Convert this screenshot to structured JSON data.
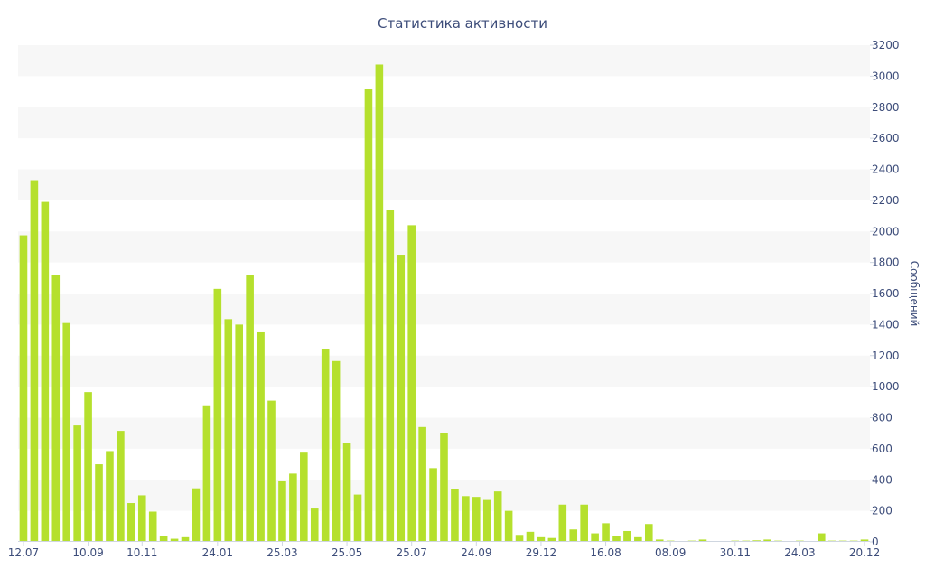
{
  "chart_data": {
    "type": "bar",
    "title": "Статистика активности",
    "xlabel": "",
    "ylabel": "Сообщений",
    "ylim": [
      0,
      3200
    ],
    "y_ticks": [
      0,
      200,
      400,
      600,
      800,
      1000,
      1200,
      1400,
      1600,
      1800,
      2000,
      2200,
      2400,
      2600,
      2800,
      3000,
      3200
    ],
    "y_axis_side": "right",
    "grid": "alternating horizontal bands",
    "bar_color": "#b5e02d",
    "band_color": "#f7f7f7",
    "x_tick_labels": [
      {
        "index": 0,
        "label": "12.07"
      },
      {
        "index": 6,
        "label": "10.09"
      },
      {
        "index": 11,
        "label": "10.11"
      },
      {
        "index": 18,
        "label": "24.01"
      },
      {
        "index": 24,
        "label": "25.03"
      },
      {
        "index": 30,
        "label": "25.05"
      },
      {
        "index": 36,
        "label": "25.07"
      },
      {
        "index": 42,
        "label": "24.09"
      },
      {
        "index": 48,
        "label": "29.12"
      },
      {
        "index": 54,
        "label": "16.08"
      },
      {
        "index": 60,
        "label": "08.09"
      },
      {
        "index": 66,
        "label": "30.11"
      },
      {
        "index": 72,
        "label": "24.03"
      },
      {
        "index": 78,
        "label": "20.12"
      }
    ],
    "values": [
      1975,
      2330,
      2190,
      1720,
      1410,
      750,
      965,
      500,
      585,
      715,
      250,
      300,
      195,
      40,
      20,
      30,
      345,
      880,
      1630,
      1435,
      1400,
      1720,
      1350,
      910,
      390,
      440,
      575,
      215,
      1245,
      1165,
      640,
      305,
      2920,
      3075,
      2140,
      1850,
      2040,
      740,
      475,
      700,
      340,
      295,
      290,
      270,
      325,
      200,
      45,
      65,
      30,
      25,
      240,
      80,
      240,
      55,
      120,
      40,
      70,
      30,
      115,
      15,
      8,
      5,
      8,
      15,
      5,
      5,
      8,
      8,
      10,
      15,
      8,
      5,
      8,
      5,
      55,
      8,
      8,
      8,
      15
    ]
  }
}
